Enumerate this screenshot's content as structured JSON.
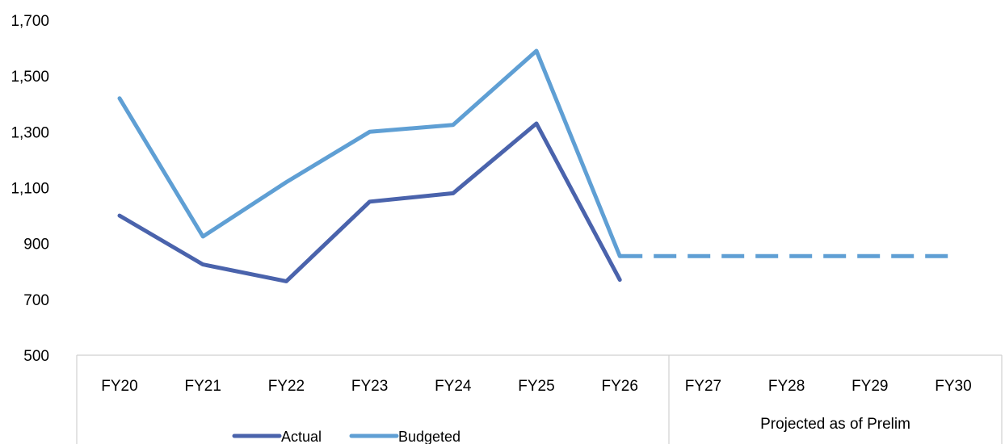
{
  "chart_data": {
    "type": "line",
    "categories": [
      "FY20",
      "FY21",
      "FY22",
      "FY23",
      "FY24",
      "FY25",
      "FY26",
      "FY27",
      "FY28",
      "FY29",
      "FY30"
    ],
    "category_group_label": "Projected as of Prelim",
    "ylim": [
      500,
      1700
    ],
    "yticks": [
      500,
      700,
      900,
      1100,
      1300,
      1500,
      1700
    ],
    "ytick_labels": [
      "500",
      "700",
      "900",
      "1,100",
      "1,300",
      "1,500",
      "1,700"
    ],
    "grid": false,
    "legend_position": "bottom",
    "series": [
      {
        "name": "Actual",
        "color": "#4A63AC",
        "values": [
          1000,
          825,
          765,
          1050,
          1080,
          1330,
          770,
          null,
          null,
          null,
          null
        ]
      },
      {
        "name": "Budgeted",
        "color": "#5F9FD4",
        "values": [
          1420,
          925,
          1120,
          1300,
          1325,
          1590,
          855,
          null,
          null,
          null,
          null
        ]
      },
      {
        "name": "",
        "style": "dashed",
        "color": "#5F9FD4",
        "values": [
          null,
          null,
          null,
          null,
          null,
          null,
          855,
          855,
          855,
          855,
          855
        ]
      }
    ]
  }
}
